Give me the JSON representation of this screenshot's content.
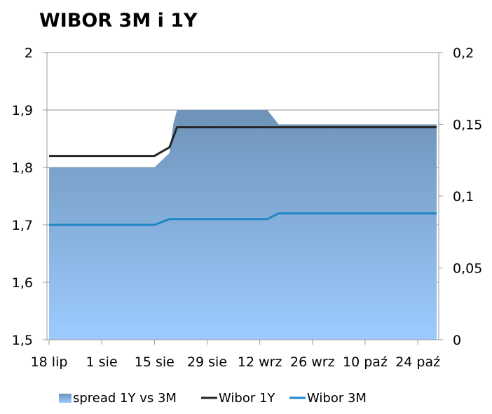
{
  "chart_data": {
    "type": "area",
    "title": "WIBOR 3M i 1Y",
    "xlabel": "",
    "ylabel": "",
    "x_ticks": [
      "18 lip",
      "1 sie",
      "15 sie",
      "29 sie",
      "12 wrz",
      "26 wrz",
      "10 paź",
      "24 paź"
    ],
    "y_left": {
      "ticks": [
        "2",
        "1,9",
        "1,8",
        "1,7",
        "1,6",
        "1,5"
      ],
      "range": [
        1.5,
        2.0
      ]
    },
    "y_right": {
      "ticks": [
        "0,2",
        "0,15",
        "0,1",
        "0,05",
        "0"
      ],
      "range": [
        0,
        0.2
      ]
    },
    "legend_position": "bottom",
    "grid": "horizontal",
    "series": [
      {
        "name": "spread 1Y vs 3M",
        "axis": "right",
        "kind": "area",
        "color_top": "#6e93b8",
        "color_bottom": "#9dcbff",
        "points": [
          {
            "x": "18 lip",
            "y": 0.12
          },
          {
            "x": "15 sie",
            "y": 0.12
          },
          {
            "x": "19 sie",
            "y": 0.13
          },
          {
            "x": "20 sie",
            "y": 0.15
          },
          {
            "x": "21 sie",
            "y": 0.16
          },
          {
            "x": "14 wrz",
            "y": 0.16
          },
          {
            "x": "17 wrz",
            "y": 0.15
          },
          {
            "x": "29 paź",
            "y": 0.15
          }
        ]
      },
      {
        "name": "Wibor 1Y",
        "axis": "left",
        "kind": "line",
        "color": "#262626",
        "points": [
          {
            "x": "18 lip",
            "y": 1.82
          },
          {
            "x": "15 sie",
            "y": 1.82
          },
          {
            "x": "19 sie",
            "y": 1.835
          },
          {
            "x": "21 sie",
            "y": 1.87
          },
          {
            "x": "29 paź",
            "y": 1.87
          }
        ]
      },
      {
        "name": "Wibor 3M",
        "axis": "left",
        "kind": "line",
        "color": "#1f86c8",
        "points": [
          {
            "x": "18 lip",
            "y": 1.7
          },
          {
            "x": "15 sie",
            "y": 1.7
          },
          {
            "x": "19 sie",
            "y": 1.71
          },
          {
            "x": "14 wrz",
            "y": 1.71
          },
          {
            "x": "17 wrz",
            "y": 1.72
          },
          {
            "x": "29 paź",
            "y": 1.72
          }
        ]
      }
    ]
  }
}
